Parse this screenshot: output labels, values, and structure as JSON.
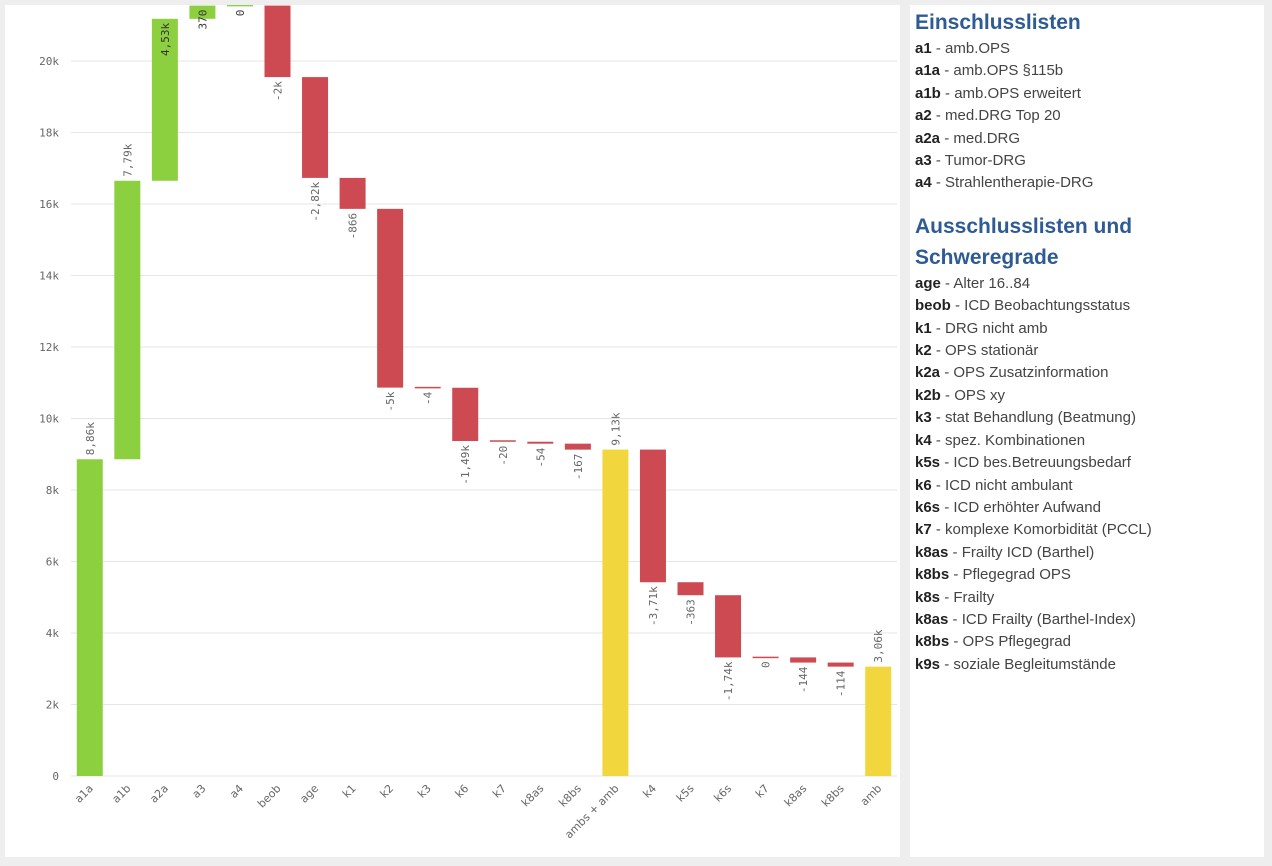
{
  "chart_data": {
    "type": "bar",
    "subtype": "waterfall",
    "ylim": [
      0,
      21500
    ],
    "yticks": [
      {
        "value": 0,
        "label": "0"
      },
      {
        "value": 2000,
        "label": "2k"
      },
      {
        "value": 4000,
        "label": "4k"
      },
      {
        "value": 6000,
        "label": "6k"
      },
      {
        "value": 8000,
        "label": "8k"
      },
      {
        "value": 10000,
        "label": "10k"
      },
      {
        "value": 12000,
        "label": "12k"
      },
      {
        "value": 14000,
        "label": "14k"
      },
      {
        "value": 16000,
        "label": "16k"
      },
      {
        "value": 18000,
        "label": "18k"
      },
      {
        "value": 20000,
        "label": "20k"
      }
    ],
    "grid": true,
    "colors": {
      "increase": "#8dd03f",
      "decrease": "#cd4a52",
      "total": "#f2d63d",
      "grid": "#e6e6e6"
    },
    "bars": [
      {
        "category": "a1a",
        "kind": "increase",
        "start": 0,
        "end": 8860,
        "label": "8,86k"
      },
      {
        "category": "a1b",
        "kind": "increase",
        "start": 8860,
        "end": 16650,
        "label": "7,79k"
      },
      {
        "category": "a2a",
        "kind": "increase",
        "start": 16650,
        "end": 21180,
        "label": "4,53k"
      },
      {
        "category": "a3",
        "kind": "increase",
        "start": 21180,
        "end": 21550,
        "label": "370"
      },
      {
        "category": "a4",
        "kind": "increase",
        "start": 21550,
        "end": 21550,
        "label": "0"
      },
      {
        "category": "beob",
        "kind": "decrease",
        "start": 21550,
        "end": 19550,
        "label": "-2k"
      },
      {
        "category": "age",
        "kind": "decrease",
        "start": 19550,
        "end": 16730,
        "label": "-2,82k"
      },
      {
        "category": "k1",
        "kind": "decrease",
        "start": 16730,
        "end": 15864,
        "label": "-866"
      },
      {
        "category": "k2",
        "kind": "decrease",
        "start": 15864,
        "end": 10864,
        "label": "-5k"
      },
      {
        "category": "k3",
        "kind": "decrease",
        "start": 10864,
        "end": 10860,
        "label": "-4"
      },
      {
        "category": "k6",
        "kind": "decrease",
        "start": 10860,
        "end": 9370,
        "label": "-1,49k"
      },
      {
        "category": "k7",
        "kind": "decrease",
        "start": 9370,
        "end": 9350,
        "label": "-20"
      },
      {
        "category": "k8as",
        "kind": "decrease",
        "start": 9350,
        "end": 9296,
        "label": "-54"
      },
      {
        "category": "k8bs",
        "kind": "decrease",
        "start": 9296,
        "end": 9129,
        "label": "-167"
      },
      {
        "category": "ambs + amb",
        "kind": "total",
        "start": 0,
        "end": 9130,
        "label": "9,13k"
      },
      {
        "category": "k4",
        "kind": "decrease",
        "start": 9130,
        "end": 5420,
        "label": "-3,71k"
      },
      {
        "category": "k5s",
        "kind": "decrease",
        "start": 5420,
        "end": 5057,
        "label": "-363"
      },
      {
        "category": "k6s",
        "kind": "decrease",
        "start": 5057,
        "end": 3317,
        "label": "-1,74k"
      },
      {
        "category": "k7",
        "kind": "decrease",
        "start": 3317,
        "end": 3317,
        "label": "0"
      },
      {
        "category": "k8as",
        "kind": "decrease",
        "start": 3317,
        "end": 3173,
        "label": "-144"
      },
      {
        "category": "k8bs",
        "kind": "decrease",
        "start": 3173,
        "end": 3059,
        "label": "-114"
      },
      {
        "category": "amb",
        "kind": "total",
        "start": 0,
        "end": 3060,
        "label": "3,06k"
      }
    ]
  },
  "legend": {
    "heading_inclusion": "Einschlusslisten",
    "inclusion_items": [
      {
        "code": "a1",
        "text": " - amb.OPS"
      },
      {
        "code": "a1a",
        "text": " - amb.OPS §115b"
      },
      {
        "code": "a1b",
        "text": " - amb.OPS erweitert"
      },
      {
        "code": "a2",
        "text": " - med.DRG Top 20"
      },
      {
        "code": "a2a",
        "text": " - med.DRG"
      },
      {
        "code": "a3",
        "text": " - Tumor-DRG"
      },
      {
        "code": "a4",
        "text": " - Strahlentherapie-DRG"
      }
    ],
    "heading_exclusion_line1": "Ausschlusslisten und",
    "heading_exclusion_line2": "Schweregrade",
    "exclusion_items": [
      {
        "code": "age",
        "text": " - Alter 16..84"
      },
      {
        "code": "beob",
        "text": " - ICD Beobachtungsstatus"
      },
      {
        "code": "k1",
        "text": " - DRG nicht amb"
      },
      {
        "code": "k2",
        "text": " - OPS stationär"
      },
      {
        "code": "k2a",
        "text": " - OPS Zusatzinformation"
      },
      {
        "code": "k2b",
        "text": " - OPS xy"
      },
      {
        "code": "k3",
        "text": " - stat Behandlung (Beatmung)"
      },
      {
        "code": "k4",
        "text": " - spez. Kombinationen"
      },
      {
        "code": "k5s",
        "text": " - ICD bes.Betreuungsbedarf"
      },
      {
        "code": "k6",
        "text": " - ICD nicht ambulant"
      },
      {
        "code": "k6s",
        "text": " - ICD erhöhter Aufwand"
      },
      {
        "code": "k7",
        "text": " - komplexe Komorbidität (PCCL)"
      },
      {
        "code": "k8as",
        "text": " - Frailty ICD (Barthel)"
      },
      {
        "code": "k8bs",
        "text": " - Pflegegrad OPS"
      },
      {
        "code": "k8s",
        "text": " - Frailty"
      },
      {
        "code": "k8as",
        "text": " - ICD Frailty (Barthel-Index)"
      },
      {
        "code": "k8bs",
        "text": " - OPS Pflegegrad"
      },
      {
        "code": "k9s",
        "text": " - soziale Begleitumstände"
      }
    ]
  }
}
